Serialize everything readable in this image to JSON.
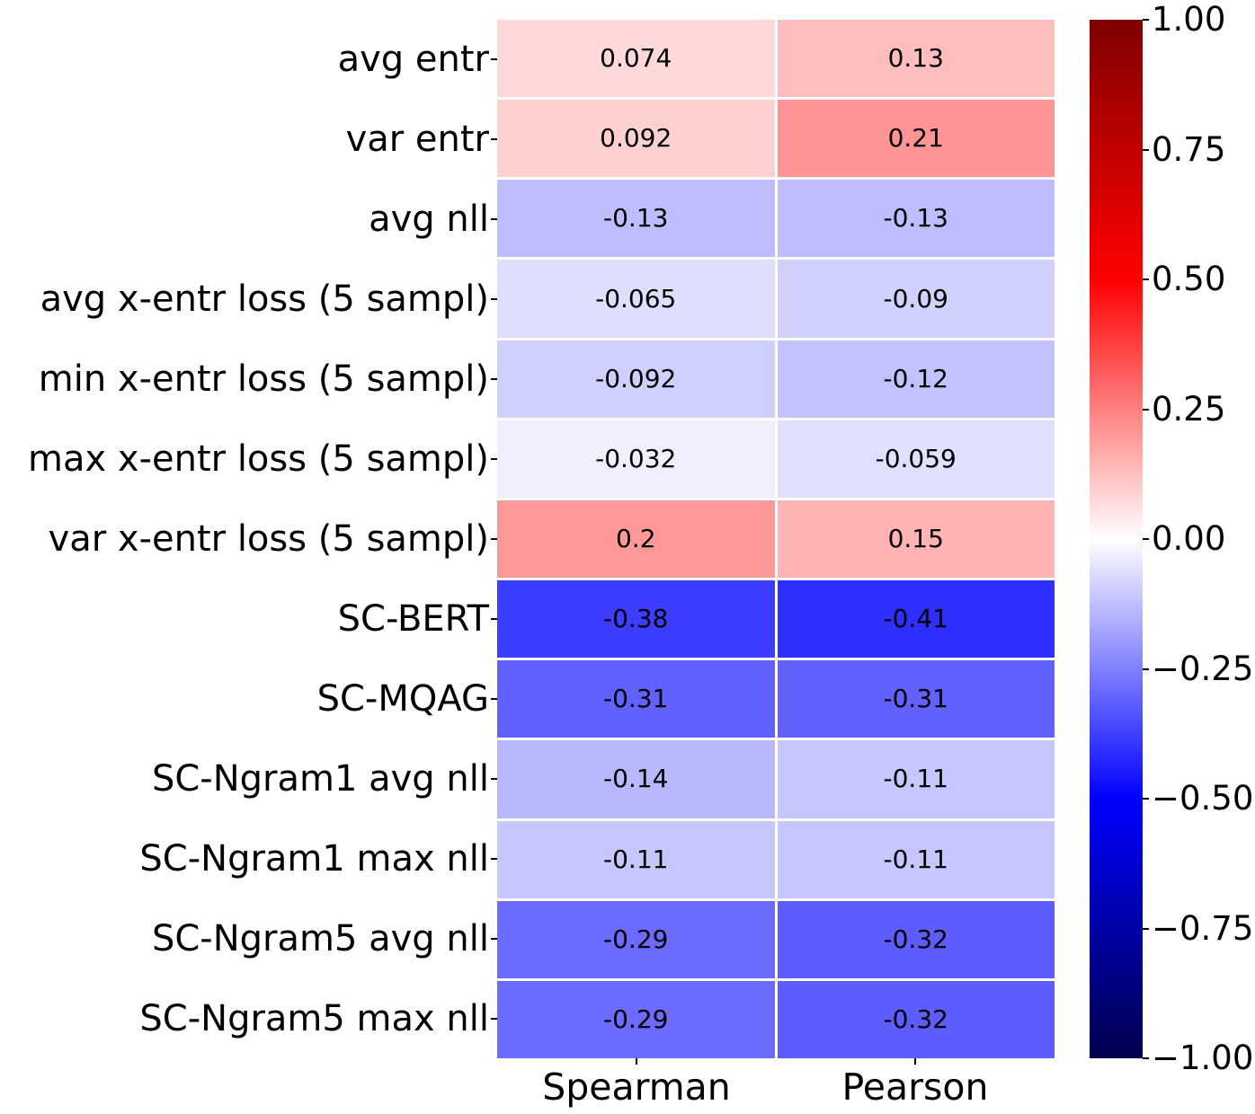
{
  "chart_data": {
    "type": "heatmap",
    "title": "",
    "xlabel": "",
    "ylabel": "",
    "columns": [
      "Spearman",
      "Pearson"
    ],
    "rows": [
      "avg entr",
      "var entr",
      "avg nll",
      "avg x-entr loss (5 sampl)",
      "min x-entr loss (5 sampl)",
      "max x-entr loss (5 sampl)",
      "var x-entr loss (5 sampl)",
      "SC-BERT",
      "SC-MQAG",
      "SC-Ngram1 avg nll",
      "SC-Ngram1 max nll",
      "SC-Ngram5 avg nll",
      "SC-Ngram5 max nll"
    ],
    "values": [
      [
        0.074,
        0.13
      ],
      [
        0.092,
        0.21
      ],
      [
        -0.13,
        -0.13
      ],
      [
        -0.065,
        -0.09
      ],
      [
        -0.092,
        -0.12
      ],
      [
        -0.032,
        -0.059
      ],
      [
        0.2,
        0.15
      ],
      [
        -0.38,
        -0.41
      ],
      [
        -0.31,
        -0.31
      ],
      [
        -0.14,
        -0.11
      ],
      [
        -0.11,
        -0.11
      ],
      [
        -0.29,
        -0.32
      ],
      [
        -0.29,
        -0.32
      ]
    ],
    "annotations": [
      [
        "0.074",
        "0.13"
      ],
      [
        "0.092",
        "0.21"
      ],
      [
        "-0.13",
        "-0.13"
      ],
      [
        "-0.065",
        "-0.09"
      ],
      [
        "-0.092",
        "-0.12"
      ],
      [
        "-0.032",
        "-0.059"
      ],
      [
        "0.2",
        "0.15"
      ],
      [
        "-0.38",
        "-0.41"
      ],
      [
        "-0.31",
        "-0.31"
      ],
      [
        "-0.14",
        "-0.11"
      ],
      [
        "-0.11",
        "-0.11"
      ],
      [
        "-0.29",
        "-0.32"
      ],
      [
        "-0.29",
        "-0.32"
      ]
    ],
    "colormap": "seismic",
    "vmin": -1,
    "vmax": 1,
    "grid": false,
    "legend_position": "right-colorbar",
    "colorbar_ticks": [
      {
        "label": "1.00",
        "value": 1.0
      },
      {
        "label": "0.75",
        "value": 0.75
      },
      {
        "label": "0.50",
        "value": 0.5
      },
      {
        "label": "0.25",
        "value": 0.25
      },
      {
        "label": "0.00",
        "value": 0.0
      },
      {
        "label": "−0.25",
        "value": -0.25
      },
      {
        "label": "−0.50",
        "value": -0.5
      },
      {
        "label": "−0.75",
        "value": -0.75
      },
      {
        "label": "−1.00",
        "value": -1.0
      }
    ]
  },
  "colors": {
    "background": "#ffffff",
    "cell_gap": "#ffffff",
    "annotation_text": "#000000",
    "tick_color": "#000000"
  }
}
